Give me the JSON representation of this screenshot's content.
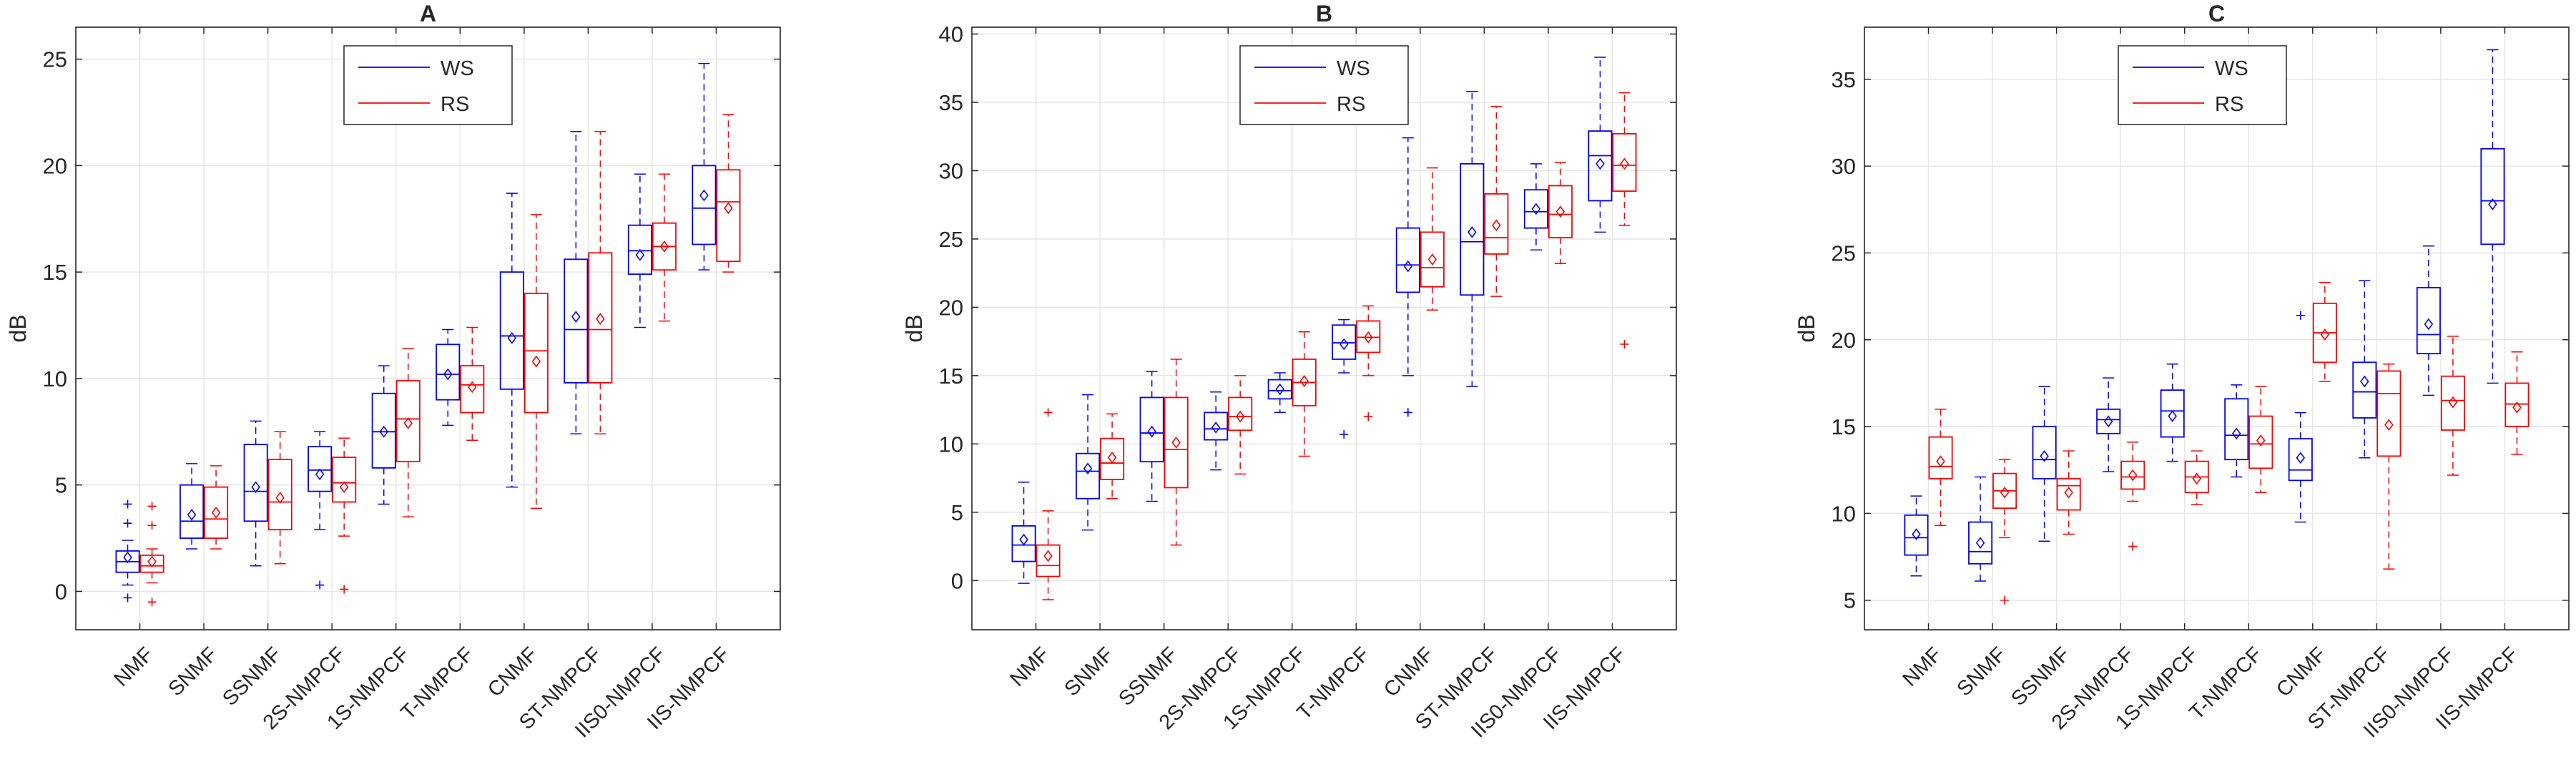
{
  "figure": {
    "ylabel": "dB"
  },
  "colors": {
    "ws": "#0000ff",
    "rs": "#ff0000",
    "grid": "#e6e6e6",
    "axis": "#262626"
  },
  "legend": {
    "ws_label": "WS",
    "rs_label": "RS"
  },
  "chart_data": [
    {
      "type": "box",
      "title": "A",
      "ylabel": "dB",
      "ylim": [
        -1.8,
        26.5
      ],
      "yticks": [
        0,
        5,
        10,
        15,
        20,
        25
      ],
      "grid": true,
      "legend": {
        "position": "top-center",
        "entries": [
          "WS",
          "RS"
        ]
      },
      "categories": [
        "NMF",
        "SNMF",
        "SSNMF",
        "2S-NMPCF",
        "1S-NMPCF",
        "T-NMPCF",
        "CNMF",
        "ST-NMPCF",
        "IIS0-NMPCF",
        "IIS-NMPCF"
      ],
      "series": [
        {
          "name": "WS",
          "boxes": [
            {
              "min": 0.3,
              "q1": 0.9,
              "median": 1.4,
              "q3": 1.9,
              "max": 2.4,
              "mean": 1.6,
              "outliers": [
                3.2,
                4.1,
                -0.3
              ]
            },
            {
              "min": 2.0,
              "q1": 2.5,
              "median": 3.3,
              "q3": 5.0,
              "max": 6.0,
              "mean": 3.6,
              "outliers": []
            },
            {
              "min": 1.2,
              "q1": 3.3,
              "median": 4.7,
              "q3": 6.9,
              "max": 8.0,
              "mean": 4.9,
              "outliers": []
            },
            {
              "min": 2.9,
              "q1": 4.7,
              "median": 5.7,
              "q3": 6.8,
              "max": 7.5,
              "mean": 5.5,
              "outliers": [
                0.3
              ]
            },
            {
              "min": 4.1,
              "q1": 5.8,
              "median": 7.5,
              "q3": 9.3,
              "max": 10.6,
              "mean": 7.5,
              "outliers": []
            },
            {
              "min": 7.8,
              "q1": 9.0,
              "median": 10.2,
              "q3": 11.6,
              "max": 12.3,
              "mean": 10.2,
              "outliers": []
            },
            {
              "min": 4.9,
              "q1": 9.5,
              "median": 12.0,
              "q3": 15.0,
              "max": 18.7,
              "mean": 11.9,
              "outliers": []
            },
            {
              "min": 7.4,
              "q1": 9.8,
              "median": 12.3,
              "q3": 15.6,
              "max": 21.6,
              "mean": 12.9,
              "outliers": []
            },
            {
              "min": 12.4,
              "q1": 14.9,
              "median": 16.0,
              "q3": 17.2,
              "max": 19.6,
              "mean": 15.8,
              "outliers": []
            },
            {
              "min": 15.1,
              "q1": 16.3,
              "median": 18.0,
              "q3": 20.0,
              "max": 24.8,
              "mean": 18.6,
              "outliers": []
            }
          ]
        },
        {
          "name": "RS",
          "boxes": [
            {
              "min": 0.4,
              "q1": 0.9,
              "median": 1.2,
              "q3": 1.7,
              "max": 2.0,
              "mean": 1.4,
              "outliers": [
                3.1,
                4.0,
                -0.5
              ]
            },
            {
              "min": 2.0,
              "q1": 2.5,
              "median": 3.4,
              "q3": 4.9,
              "max": 5.9,
              "mean": 3.7,
              "outliers": []
            },
            {
              "min": 1.3,
              "q1": 2.9,
              "median": 4.2,
              "q3": 6.2,
              "max": 7.5,
              "mean": 4.4,
              "outliers": []
            },
            {
              "min": 2.6,
              "q1": 4.2,
              "median": 5.1,
              "q3": 6.3,
              "max": 7.2,
              "mean": 4.9,
              "outliers": [
                0.1
              ]
            },
            {
              "min": 3.5,
              "q1": 6.1,
              "median": 8.1,
              "q3": 9.9,
              "max": 11.4,
              "mean": 7.9,
              "outliers": []
            },
            {
              "min": 7.1,
              "q1": 8.4,
              "median": 9.7,
              "q3": 10.6,
              "max": 12.4,
              "mean": 9.6,
              "outliers": []
            },
            {
              "min": 3.9,
              "q1": 8.4,
              "median": 11.3,
              "q3": 14.0,
              "max": 17.7,
              "mean": 10.8,
              "outliers": []
            },
            {
              "min": 7.4,
              "q1": 9.8,
              "median": 12.3,
              "q3": 15.9,
              "max": 21.6,
              "mean": 12.8,
              "outliers": []
            },
            {
              "min": 12.7,
              "q1": 15.1,
              "median": 16.2,
              "q3": 17.3,
              "max": 19.6,
              "mean": 16.2,
              "outliers": []
            },
            {
              "min": 15.0,
              "q1": 15.5,
              "median": 18.3,
              "q3": 19.8,
              "max": 22.4,
              "mean": 18.0,
              "outliers": []
            }
          ]
        }
      ]
    },
    {
      "type": "box",
      "title": "B",
      "ylabel": "dB",
      "ylim": [
        -3.6,
        40.5
      ],
      "yticks": [
        0,
        5,
        10,
        15,
        20,
        25,
        30,
        35,
        40
      ],
      "grid": true,
      "legend": {
        "position": "top-center",
        "entries": [
          "WS",
          "RS"
        ]
      },
      "categories": [
        "NMF",
        "SNMF",
        "SSNMF",
        "2S-NMPCF",
        "1S-NMPCF",
        "T-NMPCF",
        "CNMF",
        "ST-NMPCF",
        "IIS0-NMPCF",
        "IIS-NMPCF"
      ],
      "series": [
        {
          "name": "WS",
          "boxes": [
            {
              "min": -0.2,
              "q1": 1.4,
              "median": 2.6,
              "q3": 4.0,
              "max": 7.2,
              "mean": 3.0,
              "outliers": []
            },
            {
              "min": 3.7,
              "q1": 6.0,
              "median": 8.0,
              "q3": 9.3,
              "max": 13.6,
              "mean": 8.2,
              "outliers": []
            },
            {
              "min": 5.8,
              "q1": 8.7,
              "median": 10.8,
              "q3": 13.4,
              "max": 15.3,
              "mean": 10.9,
              "outliers": []
            },
            {
              "min": 8.1,
              "q1": 10.3,
              "median": 11.1,
              "q3": 12.3,
              "max": 13.8,
              "mean": 11.2,
              "outliers": []
            },
            {
              "min": 12.3,
              "q1": 13.3,
              "median": 13.9,
              "q3": 14.7,
              "max": 15.2,
              "mean": 14.0,
              "outliers": []
            },
            {
              "min": 15.2,
              "q1": 16.2,
              "median": 17.4,
              "q3": 18.7,
              "max": 19.1,
              "mean": 17.3,
              "outliers": [
                10.7
              ]
            },
            {
              "min": 15.0,
              "q1": 21.1,
              "median": 23.1,
              "q3": 25.8,
              "max": 32.4,
              "mean": 23.0,
              "outliers": [
                12.3
              ]
            },
            {
              "min": 14.2,
              "q1": 20.9,
              "median": 24.8,
              "q3": 30.5,
              "max": 35.8,
              "mean": 25.5,
              "outliers": []
            },
            {
              "min": 24.2,
              "q1": 25.8,
              "median": 27.0,
              "q3": 28.6,
              "max": 30.5,
              "mean": 27.2,
              "outliers": []
            },
            {
              "min": 25.5,
              "q1": 27.8,
              "median": 31.1,
              "q3": 32.9,
              "max": 38.3,
              "mean": 30.5,
              "outliers": []
            }
          ]
        },
        {
          "name": "RS",
          "boxes": [
            {
              "min": -1.4,
              "q1": 0.3,
              "median": 1.1,
              "q3": 2.6,
              "max": 5.1,
              "mean": 1.8,
              "outliers": [
                12.3
              ]
            },
            {
              "min": 6.0,
              "q1": 7.4,
              "median": 8.6,
              "q3": 10.4,
              "max": 12.2,
              "mean": 9.0,
              "outliers": []
            },
            {
              "min": 2.6,
              "q1": 6.8,
              "median": 9.6,
              "q3": 13.4,
              "max": 16.2,
              "mean": 10.1,
              "outliers": []
            },
            {
              "min": 7.8,
              "q1": 11.0,
              "median": 12.0,
              "q3": 13.4,
              "max": 15.0,
              "mean": 12.0,
              "outliers": []
            },
            {
              "min": 9.1,
              "q1": 12.8,
              "median": 14.5,
              "q3": 16.2,
              "max": 18.2,
              "mean": 14.6,
              "outliers": []
            },
            {
              "min": 15.0,
              "q1": 16.7,
              "median": 17.8,
              "q3": 19.0,
              "max": 20.1,
              "mean": 17.8,
              "outliers": [
                12.0
              ]
            },
            {
              "min": 19.8,
              "q1": 21.5,
              "median": 22.9,
              "q3": 25.5,
              "max": 30.2,
              "mean": 23.5,
              "outliers": []
            },
            {
              "min": 20.8,
              "q1": 23.9,
              "median": 25.1,
              "q3": 28.3,
              "max": 34.7,
              "mean": 26.0,
              "outliers": []
            },
            {
              "min": 23.2,
              "q1": 25.1,
              "median": 26.8,
              "q3": 28.9,
              "max": 30.6,
              "mean": 27.0,
              "outliers": []
            },
            {
              "min": 26.0,
              "q1": 28.5,
              "median": 30.4,
              "q3": 32.7,
              "max": 35.7,
              "mean": 30.5,
              "outliers": [
                17.3
              ]
            }
          ]
        }
      ]
    },
    {
      "type": "box",
      "title": "C",
      "ylabel": "dB",
      "ylim": [
        3.3,
        38.0
      ],
      "yticks": [
        5,
        10,
        15,
        20,
        25,
        30,
        35
      ],
      "grid": true,
      "legend": {
        "position": "top-center",
        "entries": [
          "WS",
          "RS"
        ]
      },
      "categories": [
        "NMF",
        "SNMF",
        "SSNMF",
        "2S-NMPCF",
        "1S-NMPCF",
        "T-NMPCF",
        "CNMF",
        "ST-NMPCF",
        "IIS0-NMPCF",
        "IIS-NMPCF"
      ],
      "series": [
        {
          "name": "WS",
          "boxes": [
            {
              "min": 6.4,
              "q1": 7.6,
              "median": 8.6,
              "q3": 9.9,
              "max": 11.0,
              "mean": 8.8,
              "outliers": []
            },
            {
              "min": 6.1,
              "q1": 7.1,
              "median": 7.8,
              "q3": 9.5,
              "max": 12.1,
              "mean": 8.3,
              "outliers": []
            },
            {
              "min": 8.4,
              "q1": 12.0,
              "median": 13.1,
              "q3": 15.0,
              "max": 17.3,
              "mean": 13.3,
              "outliers": []
            },
            {
              "min": 12.4,
              "q1": 14.6,
              "median": 15.4,
              "q3": 16.0,
              "max": 17.8,
              "mean": 15.3,
              "outliers": []
            },
            {
              "min": 13.0,
              "q1": 14.4,
              "median": 15.9,
              "q3": 17.1,
              "max": 18.6,
              "mean": 15.6,
              "outliers": []
            },
            {
              "min": 12.1,
              "q1": 13.1,
              "median": 14.5,
              "q3": 16.6,
              "max": 17.4,
              "mean": 14.6,
              "outliers": []
            },
            {
              "min": 9.5,
              "q1": 11.9,
              "median": 12.5,
              "q3": 14.3,
              "max": 15.8,
              "mean": 13.2,
              "outliers": [
                21.4
              ]
            },
            {
              "min": 13.2,
              "q1": 15.5,
              "median": 17.0,
              "q3": 18.7,
              "max": 23.4,
              "mean": 17.6,
              "outliers": []
            },
            {
              "min": 16.8,
              "q1": 19.2,
              "median": 20.3,
              "q3": 23.0,
              "max": 25.4,
              "mean": 20.9,
              "outliers": []
            },
            {
              "min": 17.5,
              "q1": 25.5,
              "median": 28.0,
              "q3": 31.0,
              "max": 36.7,
              "mean": 27.8,
              "outliers": []
            }
          ]
        },
        {
          "name": "RS",
          "boxes": [
            {
              "min": 9.3,
              "q1": 12.0,
              "median": 12.7,
              "q3": 14.4,
              "max": 16.0,
              "mean": 13.0,
              "outliers": []
            },
            {
              "min": 8.6,
              "q1": 10.3,
              "median": 11.3,
              "q3": 12.3,
              "max": 13.1,
              "mean": 11.2,
              "outliers": [
                5.0
              ]
            },
            {
              "min": 8.8,
              "q1": 10.2,
              "median": 11.6,
              "q3": 12.0,
              "max": 13.6,
              "mean": 11.2,
              "outliers": []
            },
            {
              "min": 10.7,
              "q1": 11.4,
              "median": 12.1,
              "q3": 13.0,
              "max": 14.1,
              "mean": 12.2,
              "outliers": [
                8.1
              ]
            },
            {
              "min": 10.5,
              "q1": 11.2,
              "median": 12.1,
              "q3": 13.0,
              "max": 13.6,
              "mean": 12.0,
              "outliers": []
            },
            {
              "min": 11.2,
              "q1": 12.6,
              "median": 14.0,
              "q3": 15.6,
              "max": 17.3,
              "mean": 14.2,
              "outliers": []
            },
            {
              "min": 17.6,
              "q1": 18.7,
              "median": 20.4,
              "q3": 22.1,
              "max": 23.3,
              "mean": 20.3,
              "outliers": []
            },
            {
              "min": 6.8,
              "q1": 13.3,
              "median": 16.9,
              "q3": 18.2,
              "max": 18.6,
              "mean": 15.1,
              "outliers": []
            },
            {
              "min": 12.2,
              "q1": 14.8,
              "median": 16.5,
              "q3": 17.9,
              "max": 20.2,
              "mean": 16.4,
              "outliers": []
            },
            {
              "min": 13.4,
              "q1": 15.0,
              "median": 16.3,
              "q3": 17.5,
              "max": 19.3,
              "mean": 16.1,
              "outliers": []
            }
          ]
        }
      ]
    }
  ]
}
